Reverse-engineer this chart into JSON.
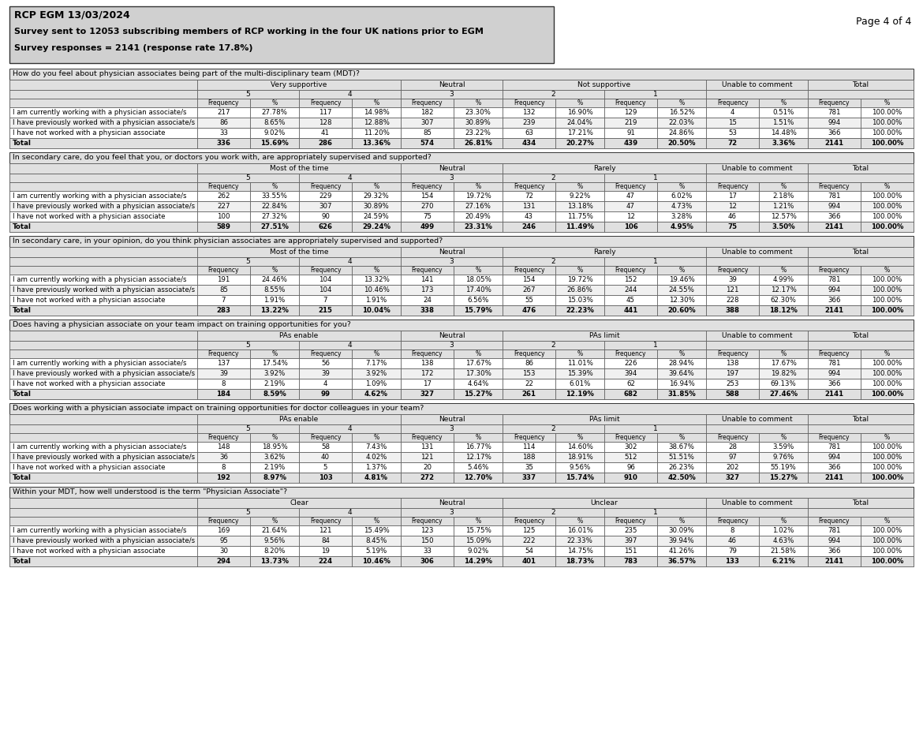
{
  "page_header": "RCP EGM 13/03/2024",
  "page_subheader1": "Survey sent to 12053 subscribing members of RCP working in the four UK nations prior to EGM",
  "page_subheader2": "Survey responses = 2141 (response rate 17.8%)",
  "page_number": "Page 4 of 4",
  "tables": [
    {
      "question": "How do you feel about physician associates being part of the multi-disciplinary team (MDT)?",
      "group_labels": [
        "Very supportive",
        "Neutral",
        "Not supportive",
        "Unable to comment",
        "Total"
      ],
      "rows": [
        {
          "label": "I am currently working with a physician associate/s",
          "data": [
            "217",
            "27.78%",
            "117",
            "14.98%",
            "182",
            "23.30%",
            "132",
            "16.90%",
            "129",
            "16.52%",
            "4",
            "0.51%",
            "781",
            "100.00%"
          ]
        },
        {
          "label": "I have previously worked with a physician associate/s",
          "data": [
            "86",
            "8.65%",
            "128",
            "12.88%",
            "307",
            "30.89%",
            "239",
            "24.04%",
            "219",
            "22.03%",
            "15",
            "1.51%",
            "994",
            "100.00%"
          ]
        },
        {
          "label": "I have not worked with a physician associate",
          "data": [
            "33",
            "9.02%",
            "41",
            "11.20%",
            "85",
            "23.22%",
            "63",
            "17.21%",
            "91",
            "24.86%",
            "53",
            "14.48%",
            "366",
            "100.00%"
          ]
        },
        {
          "label": "Total",
          "data": [
            "336",
            "15.69%",
            "286",
            "13.36%",
            "574",
            "26.81%",
            "434",
            "20.27%",
            "439",
            "20.50%",
            "72",
            "3.36%",
            "2141",
            "100.00%"
          ],
          "bold": true
        }
      ]
    },
    {
      "question": "In secondary care, do you feel that you, or doctors you work with, are appropriately supervised and supported?",
      "group_labels": [
        "Most of the time",
        "Neutral",
        "Rarely",
        "Unable to comment",
        "Total"
      ],
      "rows": [
        {
          "label": "I am currently working with a physician associate/s",
          "data": [
            "262",
            "33.55%",
            "229",
            "29.32%",
            "154",
            "19.72%",
            "72",
            "9.22%",
            "47",
            "6.02%",
            "17",
            "2.18%",
            "781",
            "100.00%"
          ]
        },
        {
          "label": "I have previously worked with a physician associate/s",
          "data": [
            "227",
            "22.84%",
            "307",
            "30.89%",
            "270",
            "27.16%",
            "131",
            "13.18%",
            "47",
            "4.73%",
            "12",
            "1.21%",
            "994",
            "100.00%"
          ]
        },
        {
          "label": "I have not worked with a physician associate",
          "data": [
            "100",
            "27.32%",
            "90",
            "24.59%",
            "75",
            "20.49%",
            "43",
            "11.75%",
            "12",
            "3.28%",
            "46",
            "12.57%",
            "366",
            "100.00%"
          ]
        },
        {
          "label": "Total",
          "data": [
            "589",
            "27.51%",
            "626",
            "29.24%",
            "499",
            "23.31%",
            "246",
            "11.49%",
            "106",
            "4.95%",
            "75",
            "3.50%",
            "2141",
            "100.00%"
          ],
          "bold": true
        }
      ]
    },
    {
      "question": "In secondary care, in your opinion, do you think physician associates are appropriately supervised and supported?",
      "group_labels": [
        "Most of the time",
        "Neutral",
        "Rarely",
        "Unable to comment",
        "Total"
      ],
      "rows": [
        {
          "label": "I am currently working with a physician associate/s",
          "data": [
            "191",
            "24.46%",
            "104",
            "13.32%",
            "141",
            "18.05%",
            "154",
            "19.72%",
            "152",
            "19.46%",
            "39",
            "4.99%",
            "781",
            "100.00%"
          ]
        },
        {
          "label": "I have previously worked with a physician associate/s",
          "data": [
            "85",
            "8.55%",
            "104",
            "10.46%",
            "173",
            "17.40%",
            "267",
            "26.86%",
            "244",
            "24.55%",
            "121",
            "12.17%",
            "994",
            "100.00%"
          ]
        },
        {
          "label": "I have not worked with a physician associate",
          "data": [
            "7",
            "1.91%",
            "7",
            "1.91%",
            "24",
            "6.56%",
            "55",
            "15.03%",
            "45",
            "12.30%",
            "228",
            "62.30%",
            "366",
            "100.00%"
          ]
        },
        {
          "label": "Total",
          "data": [
            "283",
            "13.22%",
            "215",
            "10.04%",
            "338",
            "15.79%",
            "476",
            "22.23%",
            "441",
            "20.60%",
            "388",
            "18.12%",
            "2141",
            "100.00%"
          ],
          "bold": true
        }
      ]
    },
    {
      "question": "Does having a physician associate on your team impact on training opportunities for you?",
      "group_labels": [
        "PAs enable",
        "Neutral",
        "PAs limit",
        "Unable to comment",
        "Total"
      ],
      "rows": [
        {
          "label": "I am currently working with a physician associate/s",
          "data": [
            "137",
            "17.54%",
            "56",
            "7.17%",
            "138",
            "17.67%",
            "86",
            "11.01%",
            "226",
            "28.94%",
            "138",
            "17.67%",
            "781",
            "100.00%"
          ]
        },
        {
          "label": "I have previously worked with a physician associate/s",
          "data": [
            "39",
            "3.92%",
            "39",
            "3.92%",
            "172",
            "17.30%",
            "153",
            "15.39%",
            "394",
            "39.64%",
            "197",
            "19.82%",
            "994",
            "100.00%"
          ]
        },
        {
          "label": "I have not worked with a physician associate",
          "data": [
            "8",
            "2.19%",
            "4",
            "1.09%",
            "17",
            "4.64%",
            "22",
            "6.01%",
            "62",
            "16.94%",
            "253",
            "69.13%",
            "366",
            "100.00%"
          ]
        },
        {
          "label": "Total",
          "data": [
            "184",
            "8.59%",
            "99",
            "4.62%",
            "327",
            "15.27%",
            "261",
            "12.19%",
            "682",
            "31.85%",
            "588",
            "27.46%",
            "2141",
            "100.00%"
          ],
          "bold": true
        }
      ]
    },
    {
      "question": "Does working with a physician associate impact on training opportunities for doctor colleagues in your team?",
      "group_labels": [
        "PAs enable",
        "Neutral",
        "PAs limit",
        "Unable to comment",
        "Total"
      ],
      "rows": [
        {
          "label": "I am currently working with a physician associate/s",
          "data": [
            "148",
            "18.95%",
            "58",
            "7.43%",
            "131",
            "16.77%",
            "114",
            "14.60%",
            "302",
            "38.67%",
            "28",
            "3.59%",
            "781",
            "100.00%"
          ]
        },
        {
          "label": "I have previously worked with a physician associate/s",
          "data": [
            "36",
            "3.62%",
            "40",
            "4.02%",
            "121",
            "12.17%",
            "188",
            "18.91%",
            "512",
            "51.51%",
            "97",
            "9.76%",
            "994",
            "100.00%"
          ]
        },
        {
          "label": "I have not worked with a physician associate",
          "data": [
            "8",
            "2.19%",
            "5",
            "1.37%",
            "20",
            "5.46%",
            "35",
            "9.56%",
            "96",
            "26.23%",
            "202",
            "55.19%",
            "366",
            "100.00%"
          ]
        },
        {
          "label": "Total",
          "data": [
            "192",
            "8.97%",
            "103",
            "4.81%",
            "272",
            "12.70%",
            "337",
            "15.74%",
            "910",
            "42.50%",
            "327",
            "15.27%",
            "2141",
            "100.00%"
          ],
          "bold": true
        }
      ]
    },
    {
      "question": "Within your MDT, how well understood is the term \"Physician Associate\"?",
      "group_labels": [
        "Clear",
        "Neutral",
        "Unclear",
        "Unable to comment",
        "Total"
      ],
      "rows": [
        {
          "label": "I am currently working with a physician associate/s",
          "data": [
            "169",
            "21.64%",
            "121",
            "15.49%",
            "123",
            "15.75%",
            "125",
            "16.01%",
            "235",
            "30.09%",
            "8",
            "1.02%",
            "781",
            "100.00%"
          ]
        },
        {
          "label": "I have previously worked with a physician associate/s",
          "data": [
            "95",
            "9.56%",
            "84",
            "8.45%",
            "150",
            "15.09%",
            "222",
            "22.33%",
            "397",
            "39.94%",
            "46",
            "4.63%",
            "994",
            "100.00%"
          ]
        },
        {
          "label": "I have not worked with a physician associate",
          "data": [
            "30",
            "8.20%",
            "19",
            "5.19%",
            "33",
            "9.02%",
            "54",
            "14.75%",
            "151",
            "41.26%",
            "79",
            "21.58%",
            "366",
            "100.00%"
          ]
        },
        {
          "label": "Total",
          "data": [
            "294",
            "13.73%",
            "224",
            "10.46%",
            "306",
            "14.29%",
            "401",
            "18.73%",
            "783",
            "36.57%",
            "133",
            "6.21%",
            "2141",
            "100.00%"
          ],
          "bold": true
        }
      ]
    }
  ],
  "bg_header": "#d0d0d0",
  "bg_col_header": "#e0e0e0",
  "bg_white": "#ffffff",
  "bg_alt": "#f0f0f0",
  "bg_total": "#e0e0e0",
  "border_color": "#555555"
}
